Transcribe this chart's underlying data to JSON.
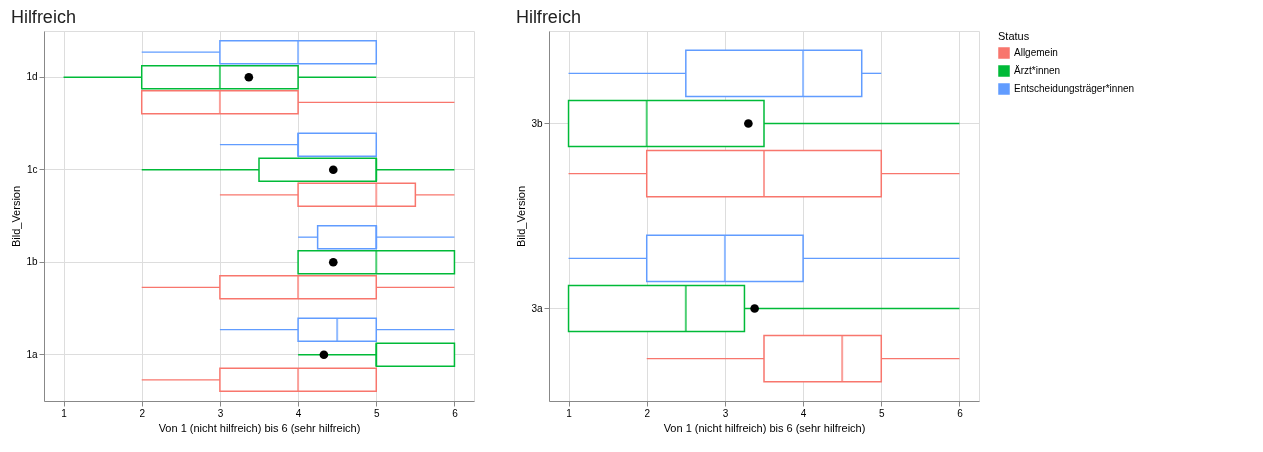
{
  "chart_data": [
    {
      "type": "box",
      "orientation": "horizontal",
      "title": "Hilfreich",
      "xlabel": "Von 1 (nicht hilfreich) bis 6 (sehr hilfreich)",
      "ylabel": "Bild_Version",
      "categories": [
        "1d",
        "1c",
        "1b",
        "1a"
      ],
      "xlim": [
        0.75,
        6.25
      ],
      "xticks": [
        1,
        2,
        3,
        4,
        5,
        6
      ],
      "grid": true,
      "legend": "right",
      "series": [
        {
          "name": "Allgemein",
          "color": "#f8766d",
          "boxes": [
            {
              "low": 2,
              "q1": 2,
              "median": 3,
              "q3": 4,
              "high": 6
            },
            {
              "low": 3,
              "q1": 4,
              "median": 5,
              "q3": 5.5,
              "high": 6
            },
            {
              "low": 2,
              "q1": 3,
              "median": 4,
              "q3": 5,
              "high": 6
            },
            {
              "low": 2,
              "q1": 3,
              "median": 4,
              "q3": 5,
              "high": 5
            }
          ]
        },
        {
          "name": "Ärzt*innen",
          "color": "#00ba38",
          "boxes": [
            {
              "low": 1,
              "q1": 2,
              "median": 3,
              "q3": 4,
              "high": 5
            },
            {
              "low": 2,
              "q1": 3.5,
              "median": 5,
              "q3": 5,
              "high": 6
            },
            {
              "low": 4,
              "q1": 4,
              "median": 5,
              "q3": 6,
              "high": 6
            },
            {
              "low": 4,
              "q1": 5,
              "median": 5,
              "q3": 6,
              "high": 6
            }
          ]
        },
        {
          "name": "Entscheidungsträger*innen",
          "color": "#619cff",
          "boxes": [
            {
              "low": 2,
              "q1": 3,
              "median": 4,
              "q3": 5,
              "high": 5
            },
            {
              "low": 3,
              "q1": 4,
              "median": 4,
              "q3": 5,
              "high": 5
            },
            {
              "low": 4,
              "q1": 4.25,
              "median": 5,
              "q3": 5,
              "high": 6
            },
            {
              "low": 3,
              "q1": 4,
              "median": 4.5,
              "q3": 5,
              "high": 6
            }
          ]
        },
        {
          "type": "scatter",
          "color": "#000000",
          "x": [
            "1d",
            "1c",
            "1b",
            "1a"
          ],
          "values": [
            3.37,
            4.45,
            4.45,
            4.33
          ]
        }
      ]
    },
    {
      "type": "box",
      "orientation": "horizontal",
      "title": "Hilfreich",
      "xlabel": "Von 1 (nicht hilfreich) bis 6 (sehr hilfreich)",
      "ylabel": "Bild_Version",
      "legend_title": "Status",
      "categories": [
        "3b",
        "3a"
      ],
      "xlim": [
        0.75,
        6.25
      ],
      "xticks": [
        1,
        2,
        3,
        4,
        5,
        6
      ],
      "grid": true,
      "legend": "right",
      "series": [
        {
          "name": "Allgemein",
          "color": "#f8766d",
          "boxes": [
            {
              "low": 1,
              "q1": 2,
              "median": 3.5,
              "q3": 5,
              "high": 6
            },
            {
              "low": 2,
              "q1": 3.5,
              "median": 4.5,
              "q3": 5,
              "high": 6
            }
          ]
        },
        {
          "name": "Ärzt*innen",
          "color": "#00ba38",
          "boxes": [
            {
              "low": 1,
              "q1": 1,
              "median": 2,
              "q3": 3.5,
              "high": 6
            },
            {
              "low": 1,
              "q1": 1,
              "median": 2.5,
              "q3": 3.25,
              "high": 6
            }
          ]
        },
        {
          "name": "Entscheidungsträger*innen",
          "color": "#619cff",
          "boxes": [
            {
              "low": 1,
              "q1": 2.5,
              "median": 4,
              "q3": 4.75,
              "high": 5
            },
            {
              "low": 1,
              "q1": 2,
              "median": 3,
              "q3": 4,
              "high": 6
            }
          ]
        },
        {
          "type": "scatter",
          "color": "#000000",
          "x": [
            "3b",
            "3a"
          ],
          "values": [
            3.3,
            3.38
          ]
        }
      ]
    }
  ]
}
